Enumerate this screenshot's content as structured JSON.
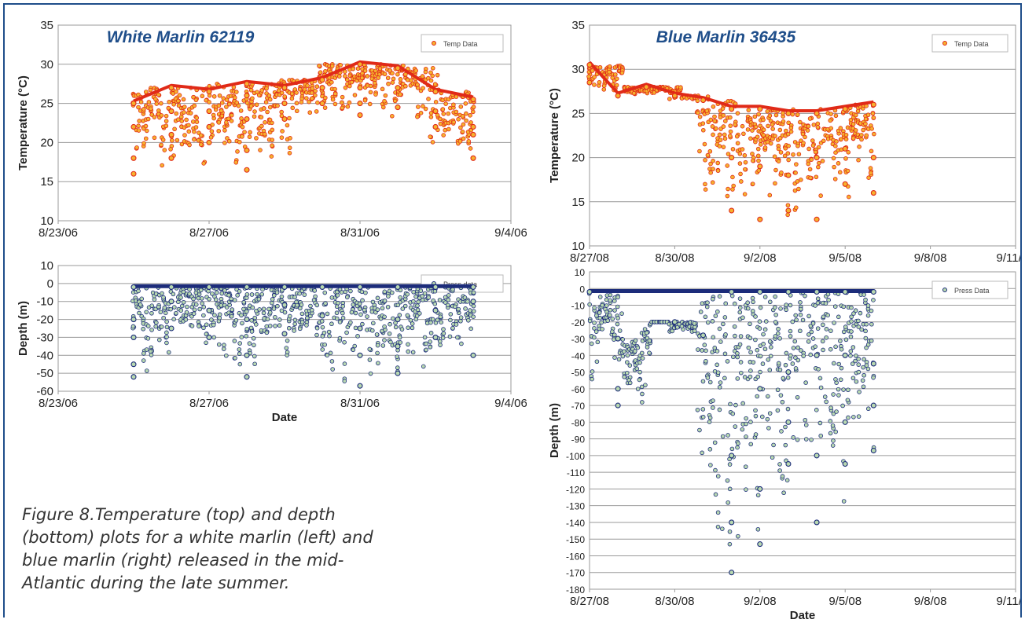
{
  "caption": "Figure 8.Temperature (top) and depth (bottom) plots for a white marlin (left) and blue marlin (right) released in the mid-Atlantic during the late summer.",
  "colors": {
    "temp_fill": "#f6b12e",
    "temp_stroke": "#e02a18",
    "depth_fill": "#b8d8b0",
    "depth_stroke": "#1c2c7a",
    "title": "#1f4e8a",
    "frame": "#1f4e8a"
  },
  "chart_data": [
    {
      "type": "scatter",
      "title": "White Marlin 62119",
      "legend": "Temp Data",
      "legend_position": "top-right",
      "ylabel": "Temperature (°C)",
      "xlabel": "",
      "ylim": [
        10,
        35
      ],
      "yticks": [
        "35",
        "30",
        "25",
        "20",
        "15",
        "10"
      ],
      "xticks": [
        "8/23/06",
        "8/27/06",
        "8/31/06",
        "9/4/06"
      ],
      "grid": true,
      "series": [
        {
          "points": [
            [
              "8/25/06",
              25
            ],
            [
              "8/25/06",
              22
            ],
            [
              "8/25/06",
              18
            ],
            [
              "8/25/06",
              16
            ],
            [
              "8/26/06",
              27
            ],
            [
              "8/26/06",
              24
            ],
            [
              "8/26/06",
              21
            ],
            [
              "8/26/06",
              18
            ],
            [
              "8/27/06",
              26.5
            ],
            [
              "8/27/06",
              24
            ],
            [
              "8/27/06",
              22
            ],
            [
              "8/27/06",
              20
            ],
            [
              "8/28/06",
              26
            ],
            [
              "8/28/06",
              23
            ],
            [
              "8/28/06",
              19
            ],
            [
              "8/28/06",
              16.5
            ],
            [
              "8/28/06",
              27.5
            ],
            [
              "8/29/06",
              27
            ],
            [
              "8/29/06",
              25
            ],
            [
              "8/29/06",
              23
            ],
            [
              "8/30/06",
              27
            ],
            [
              "8/30/06",
              25
            ],
            [
              "8/30/06",
              28
            ],
            [
              "8/31/06",
              30
            ],
            [
              "8/31/06",
              27
            ],
            [
              "8/31/06",
              25
            ],
            [
              "8/31/06",
              23.5
            ],
            [
              "9/1/06",
              29.5
            ],
            [
              "9/1/06",
              27
            ],
            [
              "9/1/06",
              24.5
            ],
            [
              "9/2/06",
              26.5
            ],
            [
              "9/2/06",
              24
            ],
            [
              "9/2/06",
              22
            ],
            [
              "9/3/06",
              25.5
            ],
            [
              "9/3/06",
              22
            ],
            [
              "9/3/06",
              18
            ],
            [
              "9/3/06",
              21
            ]
          ]
        }
      ]
    },
    {
      "type": "scatter",
      "title": "",
      "legend": "Press data",
      "legend_position": "top-right",
      "ylabel": "Depth (m)",
      "xlabel": "Date",
      "ylim": [
        -60,
        10
      ],
      "yticks": [
        "10",
        "0",
        "-10",
        "-20",
        "-30",
        "-40",
        "-50",
        "-60"
      ],
      "xticks": [
        "8/23/06",
        "8/27/06",
        "8/31/06",
        "9/4/06"
      ],
      "grid": true,
      "series": [
        {
          "points": [
            [
              "8/25/06",
              -2
            ],
            [
              "8/25/06",
              -20
            ],
            [
              "8/25/06",
              -30
            ],
            [
              "8/25/06",
              -45
            ],
            [
              "8/25/06",
              -52
            ],
            [
              "8/26/06",
              -2
            ],
            [
              "8/26/06",
              -10
            ],
            [
              "8/26/06",
              -25
            ],
            [
              "8/27/06",
              -2
            ],
            [
              "8/27/06",
              -15
            ],
            [
              "8/27/06",
              -30
            ],
            [
              "8/28/06",
              -2
            ],
            [
              "8/28/06",
              -20
            ],
            [
              "8/28/06",
              -40
            ],
            [
              "8/28/06",
              -52
            ],
            [
              "8/29/06",
              -2
            ],
            [
              "8/29/06",
              -12
            ],
            [
              "8/29/06",
              -28
            ],
            [
              "8/30/06",
              -2
            ],
            [
              "8/30/06",
              -18
            ],
            [
              "8/31/06",
              -2
            ],
            [
              "8/31/06",
              -25
            ],
            [
              "8/31/06",
              -40
            ],
            [
              "8/31/06",
              -57
            ],
            [
              "9/1/06",
              -2
            ],
            [
              "9/1/06",
              -20
            ],
            [
              "9/1/06",
              -35
            ],
            [
              "9/1/06",
              -50
            ],
            [
              "9/2/06",
              -2
            ],
            [
              "9/2/06",
              -15
            ],
            [
              "9/2/06",
              -30
            ],
            [
              "9/3/06",
              -2
            ],
            [
              "9/3/06",
              -10
            ],
            [
              "9/3/06",
              -40
            ]
          ]
        }
      ]
    },
    {
      "type": "scatter",
      "title": "Blue Marlin 36435",
      "legend": "Temp Data",
      "legend_position": "top-right",
      "ylabel": "Temperature (°C)",
      "xlabel": "",
      "ylim": [
        10,
        35
      ],
      "yticks": [
        "35",
        "30",
        "25",
        "20",
        "15",
        "10"
      ],
      "xticks": [
        "8/27/08",
        "8/30/08",
        "9/2/08",
        "9/5/08",
        "9/8/08",
        "9/11/08"
      ],
      "grid": true,
      "series": [
        {
          "points": [
            [
              "8/27/08",
              30.5
            ],
            [
              "8/27/08",
              28.5
            ],
            [
              "8/28/08",
              27
            ],
            [
              "8/29/08",
              28
            ],
            [
              "8/30/08",
              27
            ],
            [
              "8/31/08",
              26.5
            ],
            [
              "9/1/08",
              25.5
            ],
            [
              "9/1/08",
              20
            ],
            [
              "9/1/08",
              14
            ],
            [
              "9/2/08",
              25.5
            ],
            [
              "9/2/08",
              19
            ],
            [
              "9/2/08",
              13
            ],
            [
              "9/3/08",
              25
            ],
            [
              "9/3/08",
              18
            ],
            [
              "9/3/08",
              14
            ],
            [
              "9/4/08",
              25
            ],
            [
              "9/4/08",
              20
            ],
            [
              "9/4/08",
              13
            ],
            [
              "9/5/08",
              25.5
            ],
            [
              "9/5/08",
              21
            ],
            [
              "9/5/08",
              17
            ],
            [
              "9/6/08",
              26
            ],
            [
              "9/6/08",
              20
            ],
            [
              "9/6/08",
              16
            ]
          ]
        }
      ]
    },
    {
      "type": "scatter",
      "title": "",
      "legend": "Press Data",
      "legend_position": "top-right",
      "ylabel": "Depth (m)",
      "xlabel": "Date",
      "ylim": [
        -180,
        10
      ],
      "yticks": [
        "10",
        "0",
        "-10",
        "-20",
        "-30",
        "-40",
        "-50",
        "-60",
        "-70",
        "-80",
        "-90",
        "-100",
        "-110",
        "-120",
        "-130",
        "-140",
        "-150",
        "-160",
        "-170",
        "-180"
      ],
      "xticks": [
        "8/27/08",
        "8/30/08",
        "9/2/08",
        "9/5/08",
        "9/8/08",
        "9/11/08"
      ],
      "grid": true,
      "series": [
        {
          "points": [
            [
              "8/27/08",
              -2
            ],
            [
              "8/28/08",
              -30
            ],
            [
              "8/28/08",
              -60
            ],
            [
              "8/28/08",
              -70
            ],
            [
              "8/30/08",
              -20
            ],
            [
              "8/31/08",
              -28
            ],
            [
              "9/1/08",
              -2
            ],
            [
              "9/1/08",
              -100
            ],
            [
              "9/1/08",
              -140
            ],
            [
              "9/1/08",
              -170
            ],
            [
              "9/2/08",
              -2
            ],
            [
              "9/2/08",
              -60
            ],
            [
              "9/2/08",
              -120
            ],
            [
              "9/2/08",
              -153
            ],
            [
              "9/3/08",
              -2
            ],
            [
              "9/3/08",
              -50
            ],
            [
              "9/3/08",
              -80
            ],
            [
              "9/3/08",
              -105
            ],
            [
              "9/4/08",
              -2
            ],
            [
              "9/4/08",
              -40
            ],
            [
              "9/4/08",
              -100
            ],
            [
              "9/4/08",
              -140
            ],
            [
              "9/5/08",
              -2
            ],
            [
              "9/5/08",
              -40
            ],
            [
              "9/5/08",
              -80
            ],
            [
              "9/5/08",
              -105
            ],
            [
              "9/6/08",
              -2
            ],
            [
              "9/6/08",
              -45
            ],
            [
              "9/6/08",
              -70
            ],
            [
              "9/6/08",
              -97
            ]
          ]
        }
      ]
    }
  ]
}
